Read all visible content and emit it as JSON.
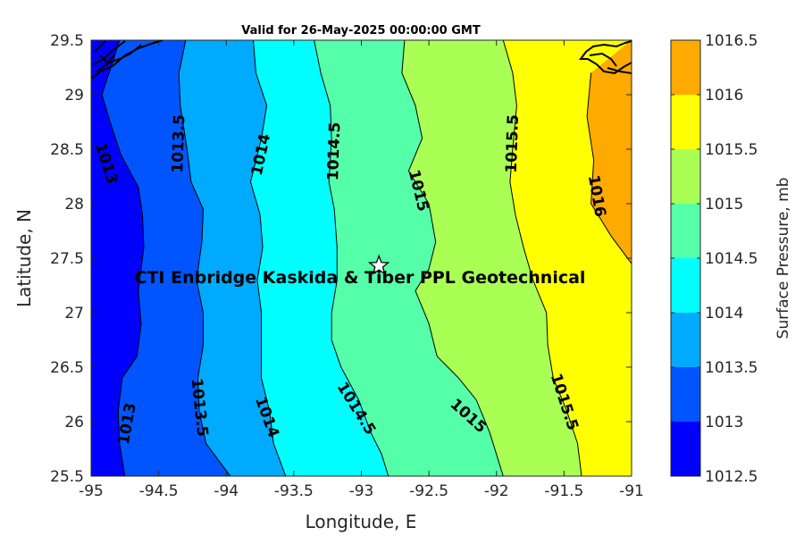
{
  "chart_data": {
    "type": "contour",
    "title": "Valid for 26-May-2025 00:00:00 GMT",
    "xlabel": "Longitude, E",
    "ylabel": "Latitude, N",
    "xlim": [
      -95,
      -91
    ],
    "ylim": [
      25.5,
      29.5
    ],
    "xticks": [
      "-95",
      "-94.5",
      "-94",
      "-93.5",
      "-93",
      "-92.5",
      "-92",
      "-91.5",
      "-91"
    ],
    "yticks": [
      "29.5",
      "29",
      "28.5",
      "28",
      "27.5",
      "27",
      "26.5",
      "26",
      "25.5"
    ],
    "colorbar": {
      "label": "Surface Pressure, mb",
      "range": [
        1012.5,
        1016.5
      ],
      "ticks": [
        "1016.5",
        "1016",
        "1015.5",
        "1015",
        "1014.5",
        "1014",
        "1013.5",
        "1013",
        "1012.5"
      ],
      "bands": [
        {
          "from": 1012.5,
          "to": 1013.0,
          "color": "#0000ff"
        },
        {
          "from": 1013.0,
          "to": 1013.5,
          "color": "#0055ff"
        },
        {
          "from": 1013.5,
          "to": 1014.0,
          "color": "#00aaff"
        },
        {
          "from": 1014.0,
          "to": 1014.5,
          "color": "#00ffff"
        },
        {
          "from": 1014.5,
          "to": 1015.0,
          "color": "#55ffaa"
        },
        {
          "from": 1015.0,
          "to": 1015.5,
          "color": "#aaff55"
        },
        {
          "from": 1015.5,
          "to": 1016.0,
          "color": "#ffff00"
        },
        {
          "from": 1016.0,
          "to": 1016.5,
          "color": "#ffaa00"
        }
      ]
    },
    "contours": [
      {
        "level": 1013.0,
        "points": [
          [
            -94.79,
            29.5
          ],
          [
            -94.84,
            29.3
          ],
          [
            -94.92,
            29.0
          ],
          [
            -94.86,
            28.75
          ],
          [
            -94.78,
            28.45
          ],
          [
            -94.65,
            28.15
          ],
          [
            -94.62,
            27.9
          ],
          [
            -94.61,
            27.6
          ],
          [
            -94.65,
            27.2
          ],
          [
            -94.63,
            26.9
          ],
          [
            -94.66,
            26.6
          ],
          [
            -94.77,
            26.4
          ],
          [
            -94.8,
            26.1
          ],
          [
            -94.79,
            25.8
          ],
          [
            -94.75,
            25.5
          ]
        ]
      },
      {
        "level": 1013.5,
        "points": [
          [
            -94.3,
            29.5
          ],
          [
            -94.35,
            29.2
          ],
          [
            -94.34,
            28.9
          ],
          [
            -94.29,
            28.5
          ],
          [
            -94.26,
            28.2
          ],
          [
            -94.17,
            27.95
          ],
          [
            -94.18,
            27.65
          ],
          [
            -94.22,
            27.3
          ],
          [
            -94.17,
            27.0
          ],
          [
            -94.17,
            26.7
          ],
          [
            -94.21,
            26.4
          ],
          [
            -94.2,
            26.1
          ],
          [
            -94.15,
            25.8
          ],
          [
            -93.97,
            25.5
          ]
        ]
      },
      {
        "level": 1014.0,
        "points": [
          [
            -93.8,
            29.5
          ],
          [
            -93.78,
            29.2
          ],
          [
            -93.7,
            28.9
          ],
          [
            -93.74,
            28.6
          ],
          [
            -93.82,
            28.2
          ],
          [
            -93.75,
            27.9
          ],
          [
            -93.73,
            27.6
          ],
          [
            -93.77,
            27.3
          ],
          [
            -93.74,
            27.0
          ],
          [
            -93.74,
            26.7
          ],
          [
            -93.74,
            26.4
          ],
          [
            -93.68,
            26.1
          ],
          [
            -93.65,
            25.8
          ],
          [
            -93.56,
            25.5
          ]
        ]
      },
      {
        "level": 1014.5,
        "points": [
          [
            -93.35,
            29.5
          ],
          [
            -93.3,
            29.2
          ],
          [
            -93.23,
            28.9
          ],
          [
            -93.22,
            28.6
          ],
          [
            -93.24,
            28.2
          ],
          [
            -93.2,
            27.95
          ],
          [
            -93.18,
            27.6
          ],
          [
            -93.18,
            27.3
          ],
          [
            -93.22,
            27.0
          ],
          [
            -93.22,
            26.75
          ],
          [
            -93.15,
            26.5
          ],
          [
            -93.02,
            26.2
          ],
          [
            -92.93,
            25.9
          ],
          [
            -92.85,
            25.7
          ],
          [
            -92.8,
            25.5
          ]
        ]
      },
      {
        "level": 1015.0,
        "points": [
          [
            -92.68,
            29.5
          ],
          [
            -92.7,
            29.2
          ],
          [
            -92.6,
            28.9
          ],
          [
            -92.55,
            28.6
          ],
          [
            -92.65,
            28.3
          ],
          [
            -92.5,
            28.0
          ],
          [
            -92.45,
            27.65
          ],
          [
            -92.5,
            27.4
          ],
          [
            -92.6,
            27.2
          ],
          [
            -92.5,
            26.9
          ],
          [
            -92.44,
            26.6
          ],
          [
            -92.28,
            26.4
          ],
          [
            -92.15,
            26.2
          ],
          [
            -92.05,
            25.9
          ],
          [
            -91.95,
            25.5
          ]
        ]
      },
      {
        "level": 1015.5,
        "points": [
          [
            -91.95,
            29.5
          ],
          [
            -91.88,
            29.2
          ],
          [
            -91.85,
            28.9
          ],
          [
            -91.88,
            28.5
          ],
          [
            -91.9,
            28.2
          ],
          [
            -91.86,
            27.9
          ],
          [
            -91.8,
            27.6
          ],
          [
            -91.73,
            27.3
          ],
          [
            -91.63,
            27.0
          ],
          [
            -91.62,
            26.7
          ],
          [
            -91.58,
            26.4
          ],
          [
            -91.48,
            26.1
          ],
          [
            -91.4,
            25.8
          ],
          [
            -91.37,
            25.5
          ]
        ]
      },
      {
        "level": 1016.0,
        "points": [
          [
            -91.3,
            29.2
          ],
          [
            -91.33,
            28.8
          ],
          [
            -91.28,
            28.4
          ],
          [
            -91.3,
            28.0
          ],
          [
            -91.15,
            27.7
          ],
          [
            -91.0,
            27.45
          ]
        ]
      }
    ],
    "contour_labels": [
      {
        "text": "1013",
        "lon": -94.89,
        "lat": 28.37,
        "rot": 72
      },
      {
        "text": "1013",
        "lon": -94.73,
        "lat": 25.98,
        "rot": -80
      },
      {
        "text": "1013.5",
        "lon": -94.35,
        "lat": 28.55,
        "rot": -88
      },
      {
        "text": "1013.5",
        "lon": -94.2,
        "lat": 26.13,
        "rot": 84
      },
      {
        "text": "1014",
        "lon": -93.74,
        "lat": 28.45,
        "rot": -78
      },
      {
        "text": "1014",
        "lon": -93.7,
        "lat": 26.04,
        "rot": 70
      },
      {
        "text": "1014.5",
        "lon": -93.2,
        "lat": 28.48,
        "rot": -88
      },
      {
        "text": "1014.5",
        "lon": -93.04,
        "lat": 26.12,
        "rot": 58
      },
      {
        "text": "1015",
        "lon": -92.58,
        "lat": 28.12,
        "rot": 76
      },
      {
        "text": "1015",
        "lon": -92.21,
        "lat": 26.05,
        "rot": 42
      },
      {
        "text": "1015.5",
        "lon": -91.88,
        "lat": 28.55,
        "rot": -88
      },
      {
        "text": "1015.5",
        "lon": -91.5,
        "lat": 26.18,
        "rot": 72
      },
      {
        "text": "1016",
        "lon": -91.26,
        "lat": 28.07,
        "rot": 80
      }
    ],
    "marker": {
      "type": "star",
      "lon": -92.87,
      "lat": 27.43
    },
    "annotation": {
      "text": "CTI Enbridge  Kaskida & Tiber PPL Geotechnical",
      "lon": -93.01,
      "lat": 27.32
    }
  }
}
